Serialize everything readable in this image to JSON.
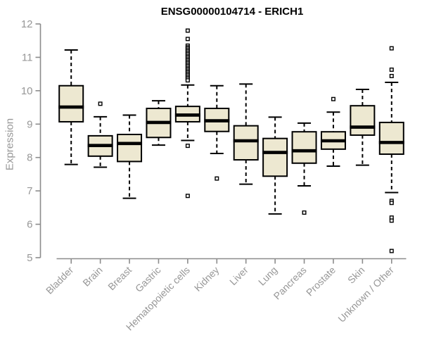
{
  "chart_data": {
    "type": "boxplot",
    "title": "ENSG00000104714 - ERICH1",
    "ylabel": "Expression",
    "xlabel": "",
    "ylim": [
      5,
      12
    ],
    "yticks": [
      12,
      11,
      10,
      9,
      8,
      7,
      6,
      5
    ],
    "grid": "off",
    "legend": "none",
    "categories": [
      "Bladder",
      "Brain",
      "Breast",
      "Gastric",
      "Hematopoietic cells",
      "Kidney",
      "Liver",
      "Lung",
      "Pancreas",
      "Prostate",
      "Skin",
      "Unknown / Other"
    ],
    "series": [
      {
        "name": "Bladder",
        "whisker_low": 7.79,
        "q1": 9.07,
        "median": 9.51,
        "q3": 10.15,
        "whisker_high": 11.22,
        "outliers": []
      },
      {
        "name": "Brain",
        "whisker_low": 7.71,
        "q1": 8.04,
        "median": 8.36,
        "q3": 8.65,
        "whisker_high": 9.22,
        "outliers": [
          9.61
        ]
      },
      {
        "name": "Breast",
        "whisker_low": 6.78,
        "q1": 7.88,
        "median": 8.42,
        "q3": 8.69,
        "whisker_high": 9.27,
        "outliers": []
      },
      {
        "name": "Gastric",
        "whisker_low": 8.37,
        "q1": 8.6,
        "median": 9.05,
        "q3": 9.47,
        "whisker_high": 9.7,
        "outliers": []
      },
      {
        "name": "Hematopoietic cells",
        "whisker_low": 8.51,
        "q1": 9.07,
        "median": 9.27,
        "q3": 9.53,
        "whisker_high": 10.17,
        "outliers": [
          11.8,
          11.55,
          11.35,
          11.3,
          11.26,
          11.21,
          11.17,
          11.12,
          11.08,
          11.03,
          10.99,
          10.94,
          10.9,
          10.85,
          10.81,
          10.76,
          10.72,
          10.67,
          10.63,
          10.58,
          10.54,
          10.49,
          10.45,
          10.4,
          10.36,
          10.31,
          8.35,
          6.85
        ]
      },
      {
        "name": "Kidney",
        "whisker_low": 8.12,
        "q1": 8.78,
        "median": 9.1,
        "q3": 9.47,
        "whisker_high": 10.15,
        "outliers": [
          7.37
        ]
      },
      {
        "name": "Liver",
        "whisker_low": 7.2,
        "q1": 7.93,
        "median": 8.5,
        "q3": 8.95,
        "whisker_high": 10.2,
        "outliers": []
      },
      {
        "name": "Lung",
        "whisker_low": 6.31,
        "q1": 7.44,
        "median": 8.15,
        "q3": 8.57,
        "whisker_high": 9.21,
        "outliers": []
      },
      {
        "name": "Pancreas",
        "whisker_low": 7.15,
        "q1": 7.83,
        "median": 8.2,
        "q3": 8.77,
        "whisker_high": 9.03,
        "outliers": [
          6.35
        ]
      },
      {
        "name": "Prostate",
        "whisker_low": 7.74,
        "q1": 8.25,
        "median": 8.5,
        "q3": 8.77,
        "whisker_high": 9.36,
        "outliers": [
          9.75
        ]
      },
      {
        "name": "Skin",
        "whisker_low": 7.77,
        "q1": 8.67,
        "median": 8.91,
        "q3": 9.55,
        "whisker_high": 10.04,
        "outliers": []
      },
      {
        "name": "Unknown / Other",
        "whisker_low": 6.95,
        "q1": 8.1,
        "median": 8.45,
        "q3": 9.05,
        "whisker_high": 10.25,
        "outliers": [
          11.27,
          10.63,
          10.44,
          6.7,
          6.64,
          6.2,
          6.11,
          5.2
        ]
      }
    ],
    "colors": {
      "box_fill": "#EDE8D1",
      "box_stroke": "#000000",
      "median": "#000000",
      "whisker": "#000000",
      "outlier_fill": "#FFFFFF",
      "outlier_stroke": "#000000",
      "axis_line": "#8C8C8C",
      "tick_label": "#979797",
      "title": "#000000",
      "background": "#FFFFFF"
    }
  }
}
